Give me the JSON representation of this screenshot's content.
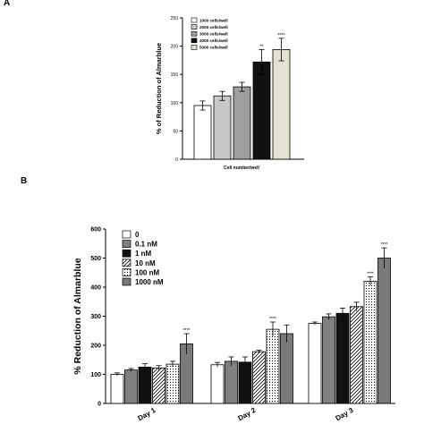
{
  "panel_labels": [
    "A",
    "B"
  ],
  "chart_data": [
    {
      "type": "bar",
      "panel": "A",
      "title": "",
      "xlabel": "Cell number/well",
      "ylabel": "% of Reduction of Almarblue",
      "ylim": [
        0,
        250
      ],
      "yticks": [
        0,
        50,
        100,
        150,
        200,
        250
      ],
      "grid": false,
      "legend_position": "top-left",
      "series": [
        {
          "name": "1000 cells/well",
          "value": 95,
          "error": 8,
          "significance": "",
          "color": "#ffffff",
          "pattern": "solid"
        },
        {
          "name": "2000 cells/well",
          "value": 112,
          "error": 8,
          "significance": "",
          "color": "#c8c8c8",
          "pattern": "solid"
        },
        {
          "name": "3000 cells/well",
          "value": 128,
          "error": 8,
          "significance": "",
          "color": "#9e9e9e",
          "pattern": "solid"
        },
        {
          "name": "4000 cells/well",
          "value": 172,
          "error": 22,
          "significance": "**",
          "color": "#111111",
          "pattern": "solid"
        },
        {
          "name": "5000 cells/well",
          "value": 194,
          "error": 20,
          "significance": "****",
          "color": "#e3e1d2",
          "pattern": "solid"
        }
      ]
    },
    {
      "type": "bar",
      "panel": "B",
      "title": "",
      "xlabel": "",
      "ylabel": "% Reduction of Almarblue",
      "ylim": [
        0,
        600
      ],
      "yticks": [
        0,
        100,
        200,
        300,
        400,
        500,
        600
      ],
      "grid": false,
      "legend_position": "top-left",
      "categories": [
        "Day 1",
        "Day 2",
        "Day 3"
      ],
      "series": [
        {
          "name": "0",
          "color": "#ffffff",
          "pattern": "solid",
          "values": [
            100,
            133,
            275
          ],
          "errors": [
            5,
            8,
            5
          ],
          "significance": [
            "",
            "",
            ""
          ]
        },
        {
          "name": "0.1 nM",
          "color": "#808080",
          "pattern": "solid",
          "values": [
            115,
            145,
            298
          ],
          "errors": [
            5,
            15,
            10
          ],
          "significance": [
            "",
            "",
            ""
          ]
        },
        {
          "name": "1 nM",
          "color": "#111111",
          "pattern": "solid",
          "values": [
            125,
            142,
            310
          ],
          "errors": [
            12,
            18,
            18
          ],
          "significance": [
            "",
            "",
            ""
          ]
        },
        {
          "name": "10 nM",
          "color": "#ffffff",
          "pattern": "hatch",
          "values": [
            122,
            178,
            333
          ],
          "errors": [
            8,
            5,
            15
          ],
          "significance": [
            "",
            "",
            ""
          ]
        },
        {
          "name": "100 nM",
          "color": "#ffffff",
          "pattern": "dots",
          "values": [
            135,
            255,
            420
          ],
          "errors": [
            10,
            25,
            15
          ],
          "significance": [
            "",
            "****",
            "****"
          ]
        },
        {
          "name": "1000 nM",
          "color": "#7a7a7a",
          "pattern": "solid",
          "values": [
            205,
            240,
            500
          ],
          "errors": [
            35,
            30,
            35
          ],
          "significance": [
            "****",
            "",
            "****"
          ]
        }
      ]
    }
  ]
}
